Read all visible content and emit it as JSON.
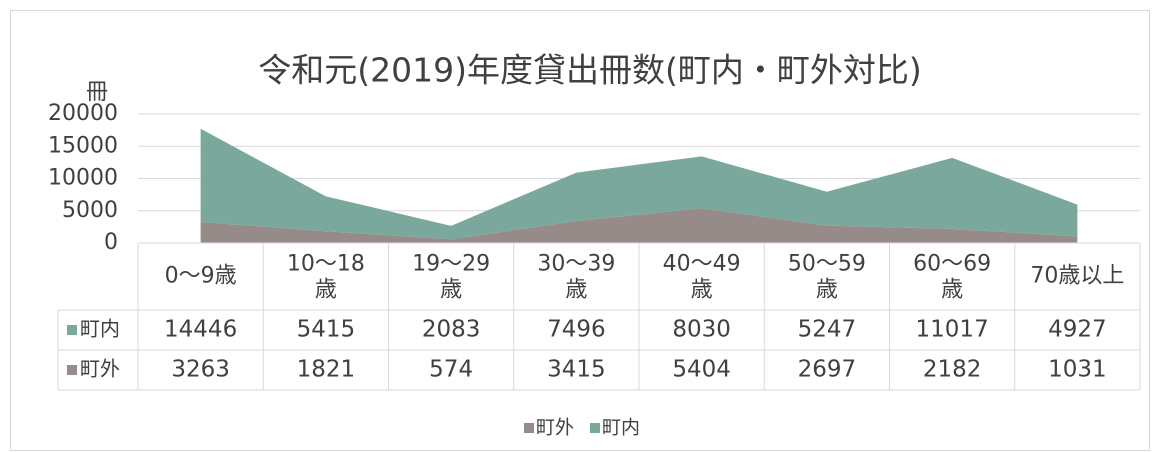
{
  "chart_data": {
    "type": "area",
    "stacked": true,
    "title": "令和元(2019)年度貸出冊数(町内・町外対比)",
    "y_label": "冊",
    "categories": [
      "0～9歳",
      "10～18歳",
      "19～29歳",
      "30～39歳",
      "40～49歳",
      "50～59歳",
      "60～69歳",
      "70歳以上"
    ],
    "series": [
      {
        "name": "町外",
        "color": "#968b88",
        "values": [
          3263,
          1821,
          574,
          3415,
          5404,
          2697,
          2182,
          1031
        ]
      },
      {
        "name": "町内",
        "color": "#7aa89c",
        "values": [
          14446,
          5415,
          2083,
          7496,
          8030,
          5247,
          11017,
          4927
        ]
      }
    ],
    "ylim": [
      0,
      20000
    ],
    "yticks": [
      0,
      5000,
      10000,
      15000,
      20000
    ],
    "grid": true,
    "legend": "bottom",
    "data_table": true
  }
}
